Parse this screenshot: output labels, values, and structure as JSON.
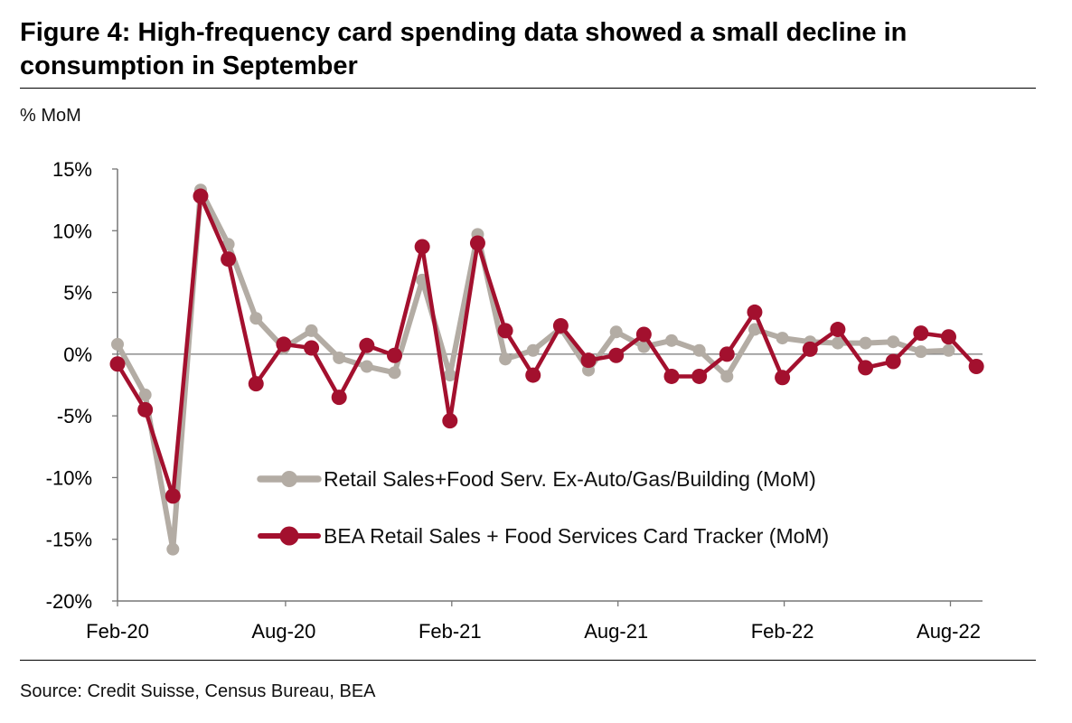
{
  "header": {
    "title": "Figure 4: High-frequency card spending data showed a small decline in consumption in September"
  },
  "footer": {
    "source": "Source: Credit Suisse, Census Bureau, BEA"
  },
  "chart_data": {
    "type": "line",
    "title": "Figure 4: High-frequency card spending data showed a small decline in consumption in September",
    "ylabel": "% MoM",
    "xlabel": "",
    "ylim": [
      -20,
      15
    ],
    "y_ticks": [
      15,
      10,
      5,
      0,
      -5,
      -10,
      -15,
      -20
    ],
    "y_tick_labels": [
      "15%",
      "10%",
      "5%",
      "0%",
      "-5%",
      "-10%",
      "-15%",
      "-20%"
    ],
    "x_tick_labels": [
      "Feb-20",
      "Aug-20",
      "Feb-21",
      "Aug-21",
      "Feb-22",
      "Aug-22"
    ],
    "x_tick_indices": [
      0,
      6,
      12,
      18,
      24,
      30
    ],
    "categories": [
      "Feb-20",
      "Mar-20",
      "Apr-20",
      "May-20",
      "Jun-20",
      "Jul-20",
      "Aug-20",
      "Sep-20",
      "Oct-20",
      "Nov-20",
      "Dec-20",
      "Jan-21",
      "Feb-21",
      "Mar-21",
      "Apr-21",
      "May-21",
      "Jun-21",
      "Jul-21",
      "Aug-21",
      "Sep-21",
      "Oct-21",
      "Nov-21",
      "Dec-21",
      "Jan-22",
      "Feb-22",
      "Mar-22",
      "Apr-22",
      "May-22",
      "Jun-22",
      "Jul-22",
      "Aug-22",
      "Sep-22"
    ],
    "grid": false,
    "legend_position": "bottom-right",
    "series": [
      {
        "name": "Retail Sales+Food Serv. Ex-Auto/Gas/Building (MoM)",
        "color": "#b3aca4",
        "values": [
          0.8,
          -3.3,
          -15.8,
          13.3,
          8.9,
          2.9,
          0.5,
          1.9,
          -0.3,
          -1.0,
          -1.5,
          6.0,
          -1.7,
          9.7,
          -0.4,
          0.3,
          2.1,
          -1.3,
          1.8,
          0.6,
          1.1,
          0.3,
          -1.8,
          2.0,
          1.3,
          1.0,
          0.9,
          0.9,
          1.0,
          0.2,
          0.3,
          null
        ]
      },
      {
        "name": "BEA Retail Sales + Food Services Card Tracker (MoM)",
        "color": "#a3102e",
        "values": [
          -0.8,
          -4.5,
          -11.5,
          12.8,
          7.7,
          -2.4,
          0.8,
          0.5,
          -3.5,
          0.7,
          -0.1,
          8.7,
          -5.4,
          9.0,
          1.9,
          -1.7,
          2.3,
          -0.5,
          -0.1,
          1.6,
          -1.8,
          -1.8,
          0.0,
          3.4,
          -1.9,
          0.4,
          2.0,
          -1.1,
          -0.6,
          1.7,
          1.4,
          -1.0
        ]
      }
    ]
  }
}
